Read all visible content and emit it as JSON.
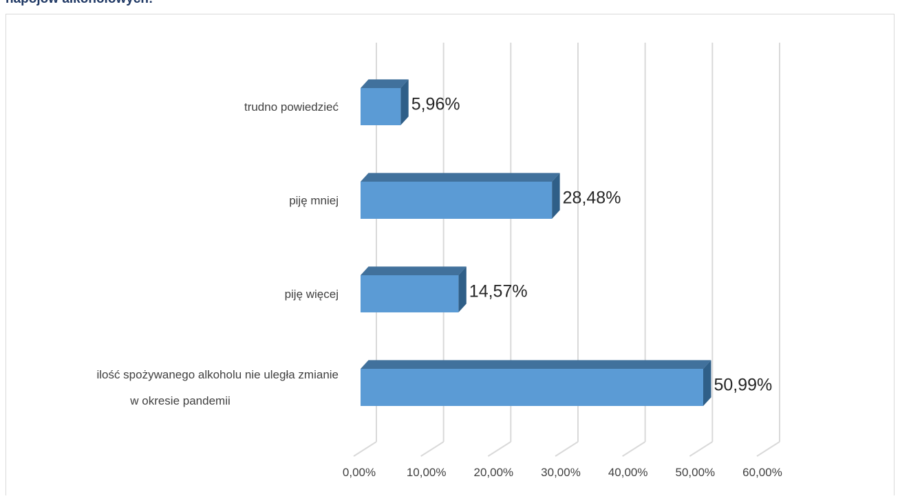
{
  "page": {
    "title": "napojów alkoholowych:"
  },
  "chart_data": {
    "type": "bar",
    "orientation": "horizontal",
    "style": "3d",
    "categories": [
      [
        "ilość spożywanego alkoholu nie uległa zmianie",
        "w okresie pandemii"
      ],
      [
        "piję więcej"
      ],
      [
        "piję mniej"
      ],
      [
        "trudno powiedzieć"
      ]
    ],
    "values": [
      50.99,
      14.57,
      28.48,
      5.96
    ],
    "value_labels": [
      "50,99%",
      "14,57%",
      "28,48%",
      "5,96%"
    ],
    "xlim": [
      0,
      60
    ],
    "ticks": [
      0,
      10,
      20,
      30,
      40,
      50,
      60
    ],
    "tick_labels": [
      "0,00%",
      "10,00%",
      "20,00%",
      "30,00%",
      "40,00%",
      "50,00%",
      "60,00%"
    ],
    "grid": true,
    "legend": false,
    "colors": {
      "bar_front": "#5b9bd5",
      "bar_top": "#41719c",
      "bar_side": "#2f5f88",
      "grid": "#d9d9d9"
    }
  }
}
